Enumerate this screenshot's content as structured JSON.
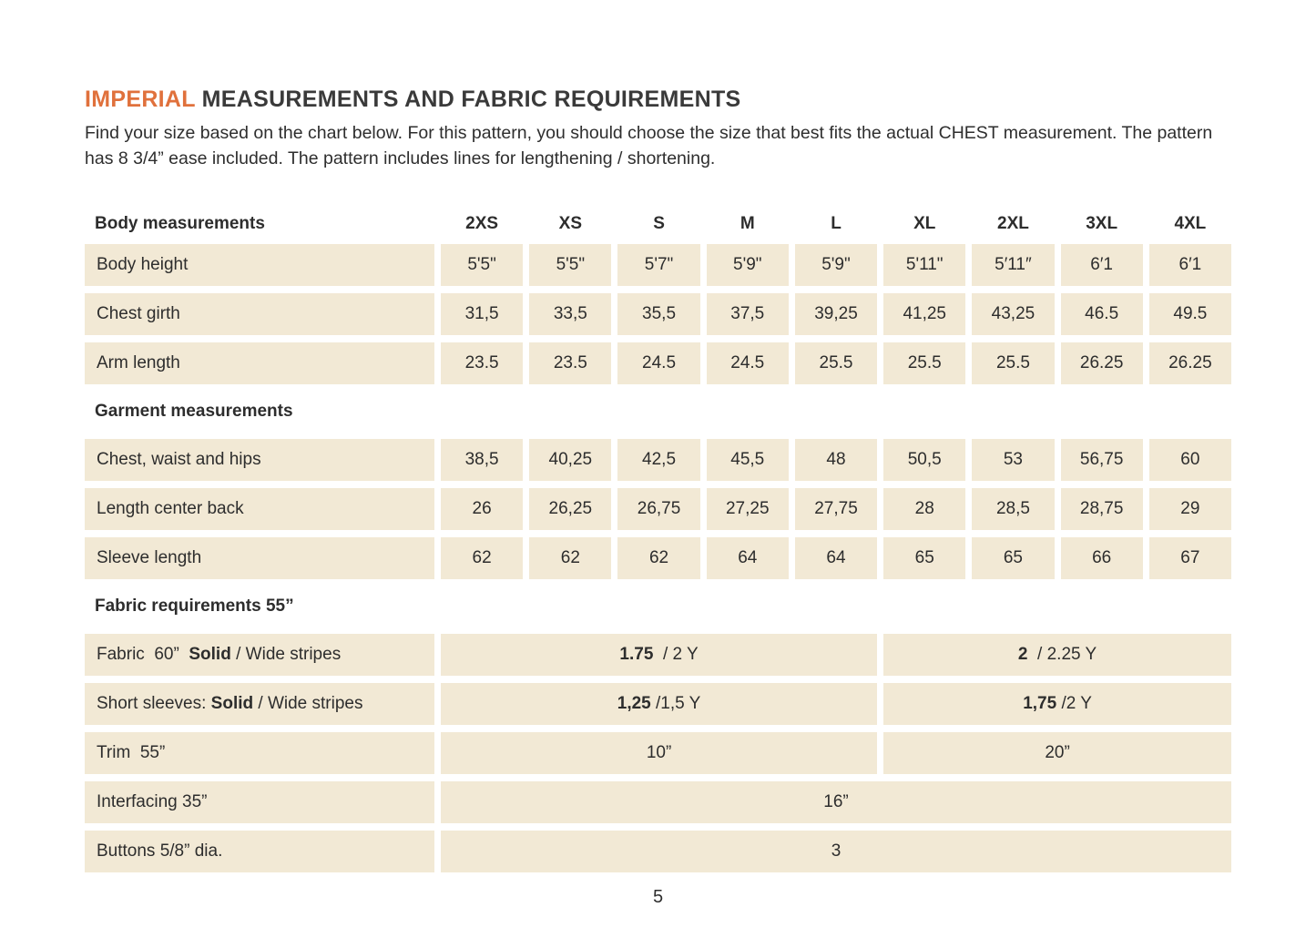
{
  "page": {
    "title": {
      "accent": "IMPERIAL",
      "rest": " MEASUREMENTS AND FABRIC REQUIREMENTS"
    },
    "intro": "Find your size based on the chart below. For this pattern, you should choose the size that best fits the actual CHEST measurement. The pattern has 8 3/4” ease included. The pattern includes lines for lengthening / shortening.",
    "page_number": "5"
  },
  "colors": {
    "accent_orange": "#e0713c",
    "cell_beige": "#f2e9d5",
    "text": "#2d2d2d"
  },
  "table": {
    "size_header": {
      "label": "Body measurements",
      "sizes": [
        "2XS",
        "XS",
        "S",
        "M",
        "L",
        "XL",
        "2XL",
        "3XL",
        "4XL"
      ]
    },
    "body_rows": [
      {
        "label": "Body height",
        "values": [
          "5'5\"",
          "5'5\"",
          "5'7\"",
          "5'9\"",
          "5'9\"",
          "5'11\"",
          "5′11″",
          "6′1",
          "6′1"
        ]
      },
      {
        "label": "Chest girth",
        "values": [
          "31,5",
          "33,5",
          "35,5",
          "37,5",
          "39,25",
          "41,25",
          "43,25",
          "46.5",
          "49.5"
        ]
      },
      {
        "label": "Arm length",
        "values": [
          "23.5",
          "23.5",
          "24.5",
          "24.5",
          "25.5",
          "25.5",
          "25.5",
          "26.25",
          "26.25"
        ]
      }
    ],
    "garment_section_label": "Garment measurements",
    "garment_rows": [
      {
        "label": "Chest, waist and hips",
        "values": [
          "38,5",
          "40,25",
          "42,5",
          "45,5",
          "48",
          "50,5",
          "53",
          "56,75",
          "60"
        ]
      },
      {
        "label": "Length center back",
        "values": [
          "26",
          "26,25",
          "26,75",
          "27,25",
          "27,75",
          "28",
          "28,5",
          "28,75",
          "29"
        ]
      },
      {
        "label": "Sleeve length",
        "values": [
          "62",
          "62",
          "62",
          "64",
          "64",
          "65",
          "65",
          "66",
          "67"
        ]
      }
    ],
    "fabric_section_label": "Fabric requirements 55”",
    "fabric_rows": [
      {
        "label_pre": "Fabric  60”  ",
        "label_bold": "Solid",
        "label_post": " / Wide stripes",
        "left": {
          "bold": "1.75",
          "rest": "  / 2 Y"
        },
        "right": {
          "bold": "2",
          "rest": "  / 2.25 Y"
        }
      },
      {
        "label_pre": "Short sleeves: ",
        "label_bold": "Solid",
        "label_post": " / Wide stripes",
        "left": {
          "bold": "1,25",
          "rest": " /1,5 Y"
        },
        "right": {
          "bold": "1,75",
          "rest": " /2 Y"
        }
      },
      {
        "label_pre": "Trim  55”",
        "label_bold": "",
        "label_post": "",
        "left": {
          "bold": "",
          "rest": "10”"
        },
        "right": {
          "bold": "",
          "rest": "20”"
        }
      }
    ],
    "full_rows": [
      {
        "label": "Interfacing  35”",
        "value": "16”"
      },
      {
        "label": "Buttons 5/8” dia.",
        "value": "3"
      }
    ]
  }
}
